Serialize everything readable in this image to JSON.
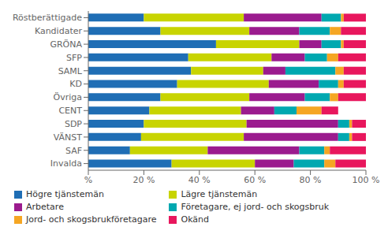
{
  "chart_data": {
    "type": "bar",
    "orientation": "horizontal",
    "stacked": true,
    "categories": [
      "Röstberättigade",
      "Kandidater",
      "GRÖNA",
      "SFP",
      "SAML",
      "KD",
      "Övriga",
      "CENT",
      "SDP",
      "VÄNST",
      "SAF",
      "Invalda"
    ],
    "series": [
      {
        "name": "Högre tjänstemän",
        "color": "#1f6eb5",
        "values": [
          20,
          26,
          46,
          36,
          37,
          32,
          26,
          22,
          20,
          19,
          15,
          30
        ]
      },
      {
        "name": "Lägre tjänstemän",
        "color": "#c8d400",
        "values": [
          36,
          32,
          30,
          30,
          26,
          33,
          32,
          33,
          37,
          37,
          28,
          30
        ]
      },
      {
        "name": "Arbetare",
        "color": "#9b1b8e",
        "values": [
          28,
          18,
          8,
          12,
          8,
          18,
          20,
          12,
          33,
          34,
          33,
          14
        ]
      },
      {
        "name": "Företagare, ej jord- och skogsbruk",
        "color": "#00a8b0",
        "values": [
          7,
          11,
          7,
          8,
          18,
          7,
          9,
          8,
          4,
          4,
          9,
          11
        ]
      },
      {
        "name": "Jord- och skogsbrukföretagare",
        "color": "#f5a623",
        "values": [
          1,
          4,
          1,
          4,
          3,
          2,
          3,
          9,
          1,
          1,
          2,
          4
        ]
      },
      {
        "name": "Okänd",
        "color": "#e8175d",
        "values": [
          8,
          9,
          8,
          10,
          8,
          8,
          10,
          6,
          5,
          5,
          13,
          11
        ]
      }
    ],
    "xlim": [
      0,
      100
    ],
    "xticks": [
      {
        "value": 0,
        "label": "%"
      },
      {
        "value": 20,
        "label": "20 %"
      },
      {
        "value": 40,
        "label": "40 %"
      },
      {
        "value": 60,
        "label": "60 %"
      },
      {
        "value": 80,
        "label": "80 %"
      },
      {
        "value": 100,
        "label": "100 %"
      }
    ],
    "grid": false,
    "legend": "bottom"
  }
}
